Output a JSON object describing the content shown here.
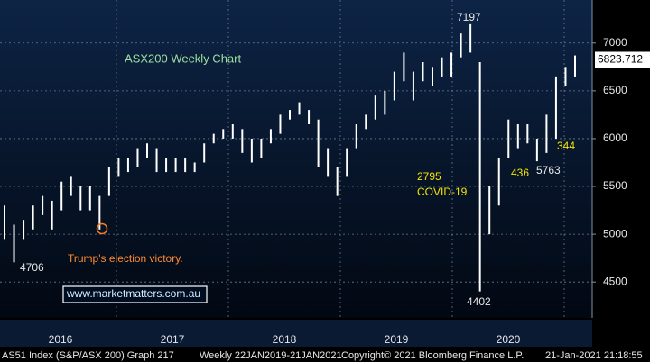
{
  "chart_data": {
    "type": "hl-bar",
    "title": "ASX200 Weekly Chart",
    "categories": [
      "2016",
      "2017",
      "2018",
      "2019",
      "2020"
    ],
    "low": [
      4950,
      4706,
      4950,
      5050,
      5200,
      5050,
      5250,
      5400,
      5250,
      5250,
      5050,
      5400,
      5600,
      5650,
      5700,
      5800,
      5650,
      5650,
      5650,
      5650,
      5650,
      5750,
      5950,
      6000,
      6000,
      5850,
      5750,
      5800,
      5950,
      6050,
      6200,
      6250,
      6150,
      5700,
      5600,
      5400,
      5600,
      5900,
      6100,
      6200,
      6250,
      6400,
      6600,
      6400,
      6600,
      6550,
      6650,
      6650,
      6850,
      6900,
      4402,
      5000,
      5300,
      5800,
      5900,
      5950,
      5763,
      5850,
      6000,
      6550,
      6650
    ],
    "high": [
      5300,
      5100,
      5150,
      5300,
      5400,
      5350,
      5550,
      5600,
      5500,
      5500,
      5400,
      5700,
      5800,
      5800,
      5900,
      5950,
      5900,
      5800,
      5800,
      5800,
      5750,
      5950,
      6050,
      6100,
      6150,
      6100,
      6000,
      6000,
      6100,
      6250,
      6300,
      6380,
      6300,
      6200,
      5900,
      5700,
      5900,
      6150,
      6250,
      6450,
      6500,
      6700,
      6900,
      6700,
      6800,
      6750,
      6850,
      6900,
      7100,
      7197,
      6800,
      5500,
      5800,
      6200,
      6150,
      6150,
      6000,
      6250,
      6650,
      6750,
      6870
    ],
    "color": "#ffffff",
    "ylim": [
      4125,
      7450
    ],
    "yticks": [
      4500,
      5000,
      5500,
      6000,
      6500,
      7000
    ],
    "grid": true,
    "last_price": 6823.712,
    "annotations": {
      "high": "7197",
      "low_2016": "4706",
      "low_2020": "4402",
      "fall": "2795",
      "covid": "COVID-19",
      "rise": "436",
      "dip": "5763",
      "gap": "344",
      "trump": "Trump's election victory."
    },
    "website": "www.marketmatters.com.au",
    "footer": {
      "index": "AS51 Index (S&P/ASX 200) Graph 217",
      "range": "Weekly 22JAN2019-21JAN2021",
      "copyright": "Copyright© 2021 Bloomberg Finance L.P.",
      "timestamp": "21-Jan-2021 21:18:55"
    }
  }
}
